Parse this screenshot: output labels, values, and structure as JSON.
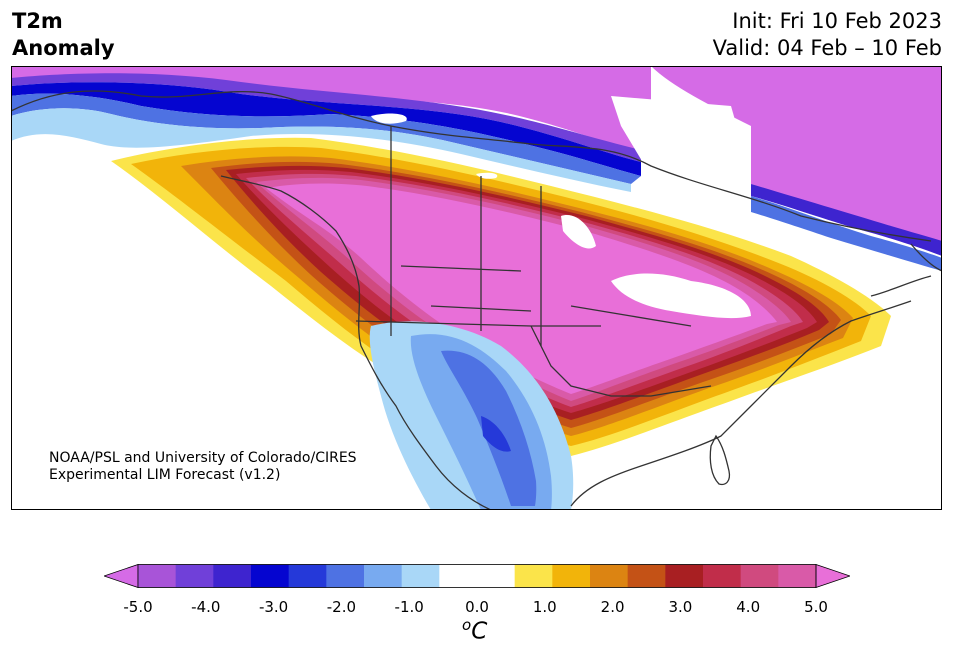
{
  "title": {
    "line1": "T2m",
    "line2": "Anomaly"
  },
  "header_right": {
    "line1": "Init: Fri 10 Feb 2023",
    "line2": "Valid: 04 Feb – 10 Feb"
  },
  "credit": {
    "line1": "NOAA/PSL and University of Colorado/CIRES",
    "line2": "Experimental LIM Forecast (v1.2)"
  },
  "colorbar": {
    "unit_base": "C",
    "unit_sup": "o",
    "ticks": [
      "-5.0",
      "-4.0",
      "-3.0",
      "-2.0",
      "-1.0",
      "0.0",
      "1.0",
      "2.0",
      "3.0",
      "4.0",
      "5.0"
    ],
    "colors": [
      "#d56be6",
      "#a854d8",
      "#7040d9",
      "#3e24cf",
      "#0505d0",
      "#2539d9",
      "#4e72e3",
      "#78aaf0",
      "#a9d7f7",
      "#ffffff",
      "#ffffff",
      "#fbe44a",
      "#f2b40a",
      "#dc8412",
      "#c45216",
      "#a81f22",
      "#c12d4a",
      "#d04a7f",
      "#d95aa8",
      "#e86fd8"
    ]
  }
}
